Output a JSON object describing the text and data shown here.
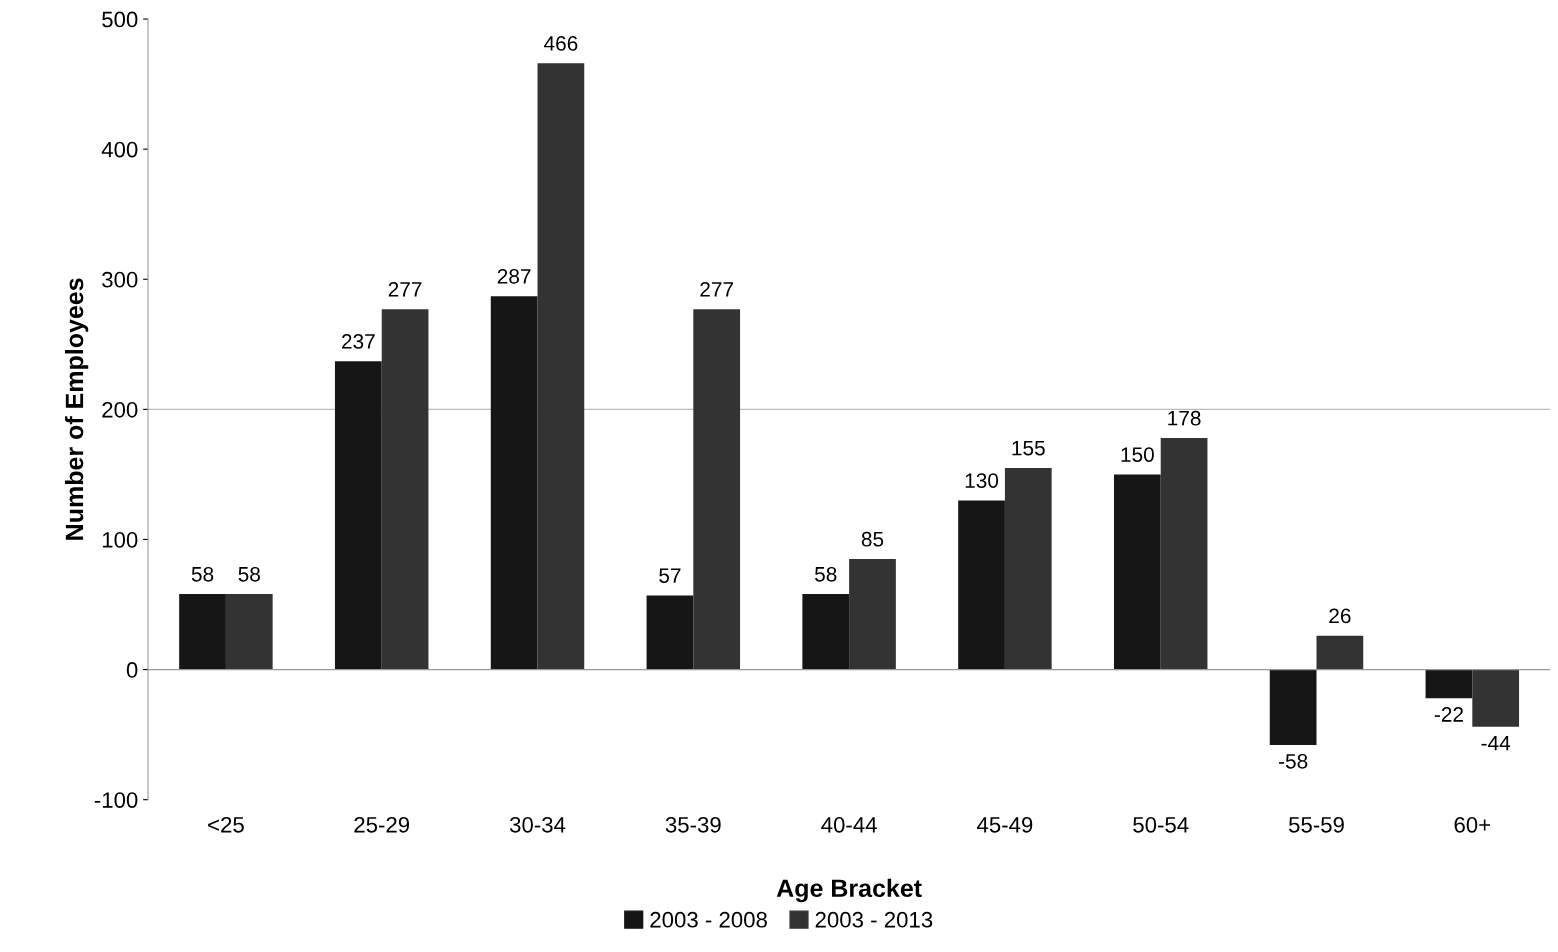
{
  "chart_data": {
    "type": "bar",
    "xlabel": "Age Bracket",
    "ylabel": "Number of Employees",
    "categories": [
      "<25",
      "25-29",
      "30-34",
      "35-39",
      "40-44",
      "45-49",
      "50-54",
      "55-59",
      "60+"
    ],
    "series": [
      {
        "name": "2003 - 2008",
        "color": "#161616",
        "values": [
          58,
          237,
          287,
          57,
          58,
          130,
          150,
          -58,
          -22
        ]
      },
      {
        "name": "2003 - 2013",
        "color": "#333333",
        "values": [
          58,
          277,
          466,
          277,
          85,
          155,
          178,
          26,
          -44
        ]
      }
    ],
    "ylim": [
      -100,
      500
    ],
    "yticks": [
      -100,
      0,
      100,
      200,
      300,
      400,
      500
    ],
    "ref_lines": [
      {
        "axis": "y",
        "value": 200,
        "color": "#bbbbbb"
      }
    ],
    "data_labels": true,
    "grid": false,
    "legend": "bottom"
  }
}
